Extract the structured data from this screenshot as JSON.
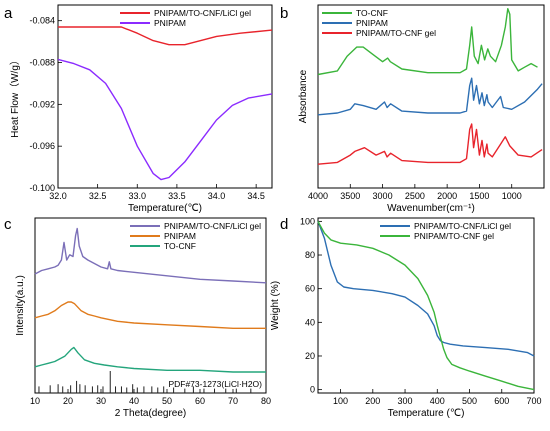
{
  "chart_data": [
    {
      "panel": "a",
      "type": "line",
      "xlabel": "Temperature(℃)",
      "ylabel": "Heat Flow（W/g）",
      "xlim": [
        32.0,
        34.7
      ],
      "ylim": [
        -0.1,
        -0.0825
      ],
      "xticks": [
        32.0,
        32.5,
        33.0,
        33.5,
        34.0,
        34.5
      ],
      "xtick_labels": [
        "32.0",
        "32.5",
        "33.0",
        "33.5",
        "34.0",
        "34.5"
      ],
      "yticks": [
        -0.1,
        -0.096,
        -0.092,
        -0.088,
        -0.084
      ],
      "ytick_labels": [
        "-0.100",
        "-0.096",
        "-0.092",
        "-0.088",
        "-0.084"
      ],
      "legend_position": "top-right",
      "series": [
        {
          "name": "PNIPAM/TO-CNF/LiCl gel",
          "color": "#e8242c",
          "x": [
            32.0,
            32.4,
            32.8,
            33.0,
            33.2,
            33.4,
            33.6,
            33.8,
            34.0,
            34.3,
            34.7
          ],
          "y": [
            -0.0846,
            -0.0846,
            -0.0846,
            -0.0852,
            -0.0859,
            -0.0863,
            -0.0863,
            -0.0859,
            -0.0855,
            -0.0852,
            -0.0849
          ]
        },
        {
          "name": "PNIPAM",
          "color": "#8b2bff",
          "x": [
            32.0,
            32.2,
            32.4,
            32.6,
            32.8,
            33.0,
            33.2,
            33.3,
            33.4,
            33.6,
            33.8,
            34.0,
            34.2,
            34.4,
            34.7
          ],
          "y": [
            -0.0877,
            -0.0881,
            -0.0887,
            -0.09,
            -0.0924,
            -0.096,
            -0.0986,
            -0.0992,
            -0.099,
            -0.0975,
            -0.0955,
            -0.0935,
            -0.0921,
            -0.0914,
            -0.091
          ]
        }
      ]
    },
    {
      "panel": "b",
      "type": "line",
      "xlabel": "Wavenumber(cm⁻¹)",
      "ylabel": "Absorbance",
      "xlim": [
        4000,
        500
      ],
      "ylim": [
        0,
        100
      ],
      "x_reversed": true,
      "xticks": [
        4000,
        3500,
        3000,
        2500,
        2000,
        1500,
        1000
      ],
      "xtick_labels": [
        "4000",
        "3500",
        "3000",
        "2500",
        "2000",
        "1500",
        "1000"
      ],
      "legend_position": "top-left",
      "series": [
        {
          "name": "TO-CNF",
          "color": "#3bb53b",
          "x": [
            4000,
            3700,
            3550,
            3400,
            3300,
            3150,
            3000,
            2920,
            2880,
            2700,
            2300,
            2000,
            1800,
            1700,
            1650,
            1620,
            1580,
            1520,
            1470,
            1420,
            1370,
            1330,
            1250,
            1160,
            1100,
            1060,
            1030,
            1000,
            900,
            800,
            700,
            600
          ],
          "y": [
            62,
            64,
            72,
            77,
            77,
            73,
            69,
            71,
            69,
            65,
            63,
            63,
            63,
            65,
            78,
            88,
            72,
            68,
            78,
            70,
            76,
            72,
            69,
            78,
            88,
            98,
            95,
            70,
            64,
            66,
            68,
            66
          ]
        },
        {
          "name": "PNIPAM",
          "color": "#2d6fb3",
          "x": [
            4000,
            3700,
            3500,
            3430,
            3300,
            3100,
            2970,
            2930,
            2875,
            2700,
            2300,
            2000,
            1800,
            1700,
            1650,
            1620,
            1590,
            1545,
            1500,
            1460,
            1425,
            1385,
            1365,
            1300,
            1172,
            1130,
            1000,
            800,
            600,
            530
          ],
          "y": [
            40,
            41,
            43,
            46,
            45,
            43,
            47,
            44,
            46,
            42,
            41,
            41,
            41,
            42,
            56,
            60,
            48,
            56,
            46,
            52,
            45,
            51,
            47,
            44,
            50,
            44,
            43,
            47,
            54,
            57
          ]
        },
        {
          "name": "PNIPAM/TO-CNF gel",
          "color": "#e8242c",
          "x": [
            4000,
            3700,
            3500,
            3430,
            3280,
            3100,
            2970,
            2930,
            2875,
            2700,
            2300,
            2000,
            1800,
            1700,
            1650,
            1620,
            1590,
            1545,
            1500,
            1460,
            1425,
            1385,
            1365,
            1300,
            1172,
            1100,
            1030,
            900,
            700,
            530
          ],
          "y": [
            13,
            14,
            18,
            20,
            22,
            18,
            20,
            17,
            19,
            15,
            14,
            14,
            14,
            16,
            32,
            35,
            22,
            32,
            18,
            26,
            17,
            24,
            19,
            17,
            24,
            28,
            23,
            18,
            17,
            21
          ]
        }
      ]
    },
    {
      "panel": "c",
      "type": "line",
      "xlabel": "2 Theta(degree)",
      "ylabel": "Intensity(a.u.)",
      "xlim": [
        10,
        80
      ],
      "ylim": [
        0,
        100
      ],
      "xticks": [
        10,
        20,
        30,
        40,
        50,
        60,
        70,
        80
      ],
      "xtick_labels": [
        "10",
        "20",
        "30",
        "40",
        "50",
        "60",
        "70",
        "80"
      ],
      "legend_position": "top-right",
      "annotation": "PDF#73-1273(LiCl·H2O)",
      "series": [
        {
          "name": "PNIPAM/TO-CNF/LiCl gel",
          "color": "#7b6fb8",
          "x": [
            10,
            12,
            14,
            16,
            17,
            18,
            18.8,
            19.6,
            20.5,
            21.5,
            22.3,
            22.8,
            23.4,
            24.5,
            26,
            28,
            30,
            32,
            32.5,
            33,
            35,
            40,
            50,
            60,
            70,
            80
          ],
          "y": [
            68,
            70,
            71,
            72,
            73,
            76,
            86,
            76,
            79,
            78,
            90,
            94,
            84,
            78,
            76,
            74,
            72,
            71,
            75,
            71,
            70,
            69,
            67,
            65,
            64,
            63
          ]
        },
        {
          "name": "PNIPAM",
          "color": "#e07b1c",
          "x": [
            10,
            12,
            14,
            16,
            18,
            19,
            20,
            21,
            22,
            24,
            26,
            28,
            30,
            35,
            40,
            50,
            60,
            70,
            80
          ],
          "y": [
            43,
            44,
            45,
            47,
            50,
            51,
            52,
            52,
            51,
            47,
            45,
            44,
            43,
            41,
            40,
            39,
            38,
            37,
            37
          ]
        },
        {
          "name": "TO-CNF",
          "color": "#24a57c",
          "x": [
            10,
            12,
            14,
            16,
            18,
            19,
            20,
            21,
            21.8,
            23,
            25,
            28,
            31,
            35,
            40,
            50,
            60,
            70,
            80
          ],
          "y": [
            15,
            16,
            17,
            18,
            20,
            21,
            23,
            25,
            26,
            23,
            19,
            17,
            16,
            15,
            14,
            13,
            13,
            12,
            12
          ]
        }
      ],
      "reference_peaks": {
        "color": "#222222",
        "x": [
          11.2,
          14.6,
          17.0,
          18.4,
          20.8,
          22.6,
          23.6,
          25.2,
          27.4,
          29.0,
          30.6,
          32.8,
          34.4,
          36.2,
          37.8,
          39.6,
          41.0,
          43.0,
          45.4,
          47.2,
          49.0,
          52.0,
          55.4,
          58.0,
          61.2,
          64.4,
          67.8,
          71.0,
          75.4
        ],
        "intensity": [
          0.3,
          0.35,
          0.4,
          0.3,
          0.35,
          0.55,
          0.4,
          0.35,
          0.3,
          0.35,
          0.3,
          1.0,
          0.3,
          0.3,
          0.25,
          0.4,
          0.25,
          0.3,
          0.3,
          0.25,
          0.3,
          0.25,
          0.2,
          0.3,
          0.2,
          0.2,
          0.2,
          0.2,
          0.2
        ]
      }
    },
    {
      "panel": "d",
      "type": "line",
      "xlabel": "Temperature (℃)",
      "ylabel": "Weight (%)",
      "xlim": [
        30,
        700
      ],
      "ylim": [
        -2,
        102
      ],
      "xticks": [
        100,
        200,
        300,
        400,
        500,
        600,
        700
      ],
      "xtick_labels": [
        "100",
        "200",
        "300",
        "400",
        "500",
        "600",
        "700"
      ],
      "yticks": [
        0,
        20,
        40,
        60,
        80,
        100
      ],
      "ytick_labels": [
        "0",
        "20",
        "40",
        "60",
        "80",
        "100"
      ],
      "legend_position": "top-right",
      "series": [
        {
          "name": "PNIPAM/TO-CNF/LiCl gel",
          "color": "#2d6fb3",
          "x": [
            30,
            50,
            70,
            90,
            110,
            140,
            200,
            260,
            300,
            340,
            370,
            390,
            400,
            410,
            420,
            440,
            480,
            550,
            620,
            680,
            700
          ],
          "y": [
            100,
            90,
            74,
            64,
            61,
            60,
            59,
            57,
            55,
            50,
            45,
            38,
            32,
            29,
            28,
            27,
            26,
            25,
            24,
            22,
            20
          ]
        },
        {
          "name": "PNIPAM/TO-CNF gel",
          "color": "#3bb53b",
          "x": [
            30,
            50,
            70,
            100,
            150,
            200,
            250,
            300,
            340,
            370,
            390,
            400,
            410,
            420,
            430,
            445,
            470,
            500,
            550,
            600,
            650,
            700
          ],
          "y": [
            100,
            93,
            89,
            87,
            86,
            84,
            80,
            74,
            66,
            56,
            46,
            38,
            31,
            24,
            19,
            15,
            13,
            11,
            8,
            5,
            2,
            0
          ]
        }
      ]
    }
  ],
  "panel_labels": {
    "a": "a",
    "b": "b",
    "c": "c",
    "d": "d"
  }
}
